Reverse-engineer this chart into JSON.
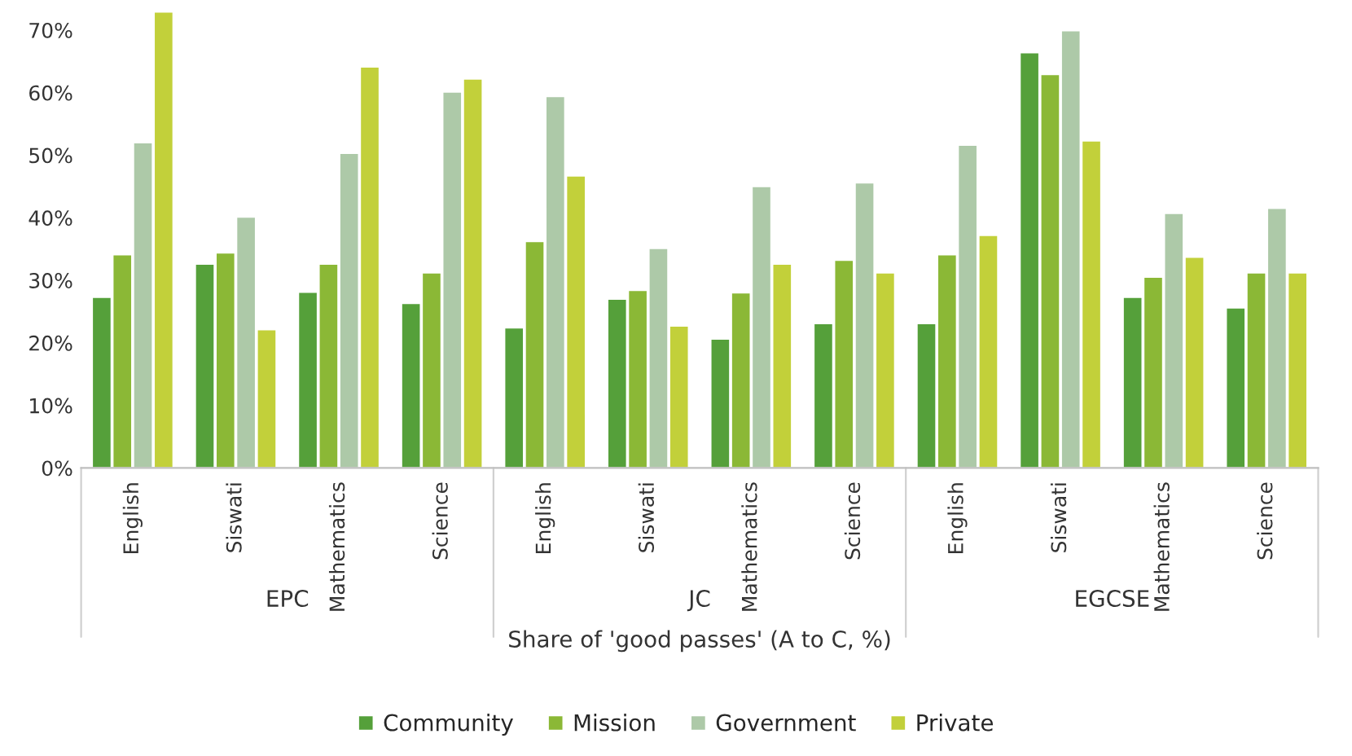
{
  "chart_data": {
    "type": "bar",
    "categories": [
      "English",
      "Siswati",
      "Mathematics",
      "Science",
      "English",
      "Siswati",
      "Mathematics",
      "Science",
      "English",
      "Siswati",
      "Mathematics",
      "Science"
    ],
    "series": [
      {
        "name": "Community",
        "color": "#55a03a",
        "values": [
          27.3,
          32.6,
          28.1,
          26.3,
          22.4,
          27.0,
          20.6,
          23.1,
          23.1,
          66.4,
          27.3,
          25.6
        ]
      },
      {
        "name": "Mission",
        "color": "#8bb836",
        "values": [
          34.1,
          34.4,
          32.6,
          31.2,
          36.2,
          28.4,
          28.0,
          33.2,
          34.1,
          62.9,
          30.5,
          31.2
        ]
      },
      {
        "name": "Government",
        "color": "#adc9a8",
        "values": [
          52.0,
          40.1,
          50.3,
          60.1,
          59.4,
          35.1,
          45.0,
          45.6,
          51.6,
          69.9,
          40.7,
          41.5
        ]
      },
      {
        "name": "Private",
        "color": "#c2d03a",
        "values": [
          72.9,
          22.1,
          64.1,
          62.2,
          46.7,
          22.7,
          32.6,
          31.2,
          37.2,
          52.3,
          33.7,
          31.2
        ]
      }
    ],
    "annotations": [
      "EPC",
      "JC",
      "EGCSE"
    ],
    "xlabel": "Share of 'good passes' (A to C, %)",
    "ylim": [
      0,
      73
    ],
    "yticks": [
      {
        "value": 0,
        "label": "0%"
      },
      {
        "value": 10,
        "label": "10%"
      },
      {
        "value": 20,
        "label": "20%"
      },
      {
        "value": 30,
        "label": "30%"
      },
      {
        "value": 40,
        "label": "40%"
      },
      {
        "value": 50,
        "label": "50%"
      },
      {
        "value": 60,
        "label": "60%"
      },
      {
        "value": 70,
        "label": "70%"
      }
    ],
    "grid": false,
    "legend": "bottom"
  }
}
